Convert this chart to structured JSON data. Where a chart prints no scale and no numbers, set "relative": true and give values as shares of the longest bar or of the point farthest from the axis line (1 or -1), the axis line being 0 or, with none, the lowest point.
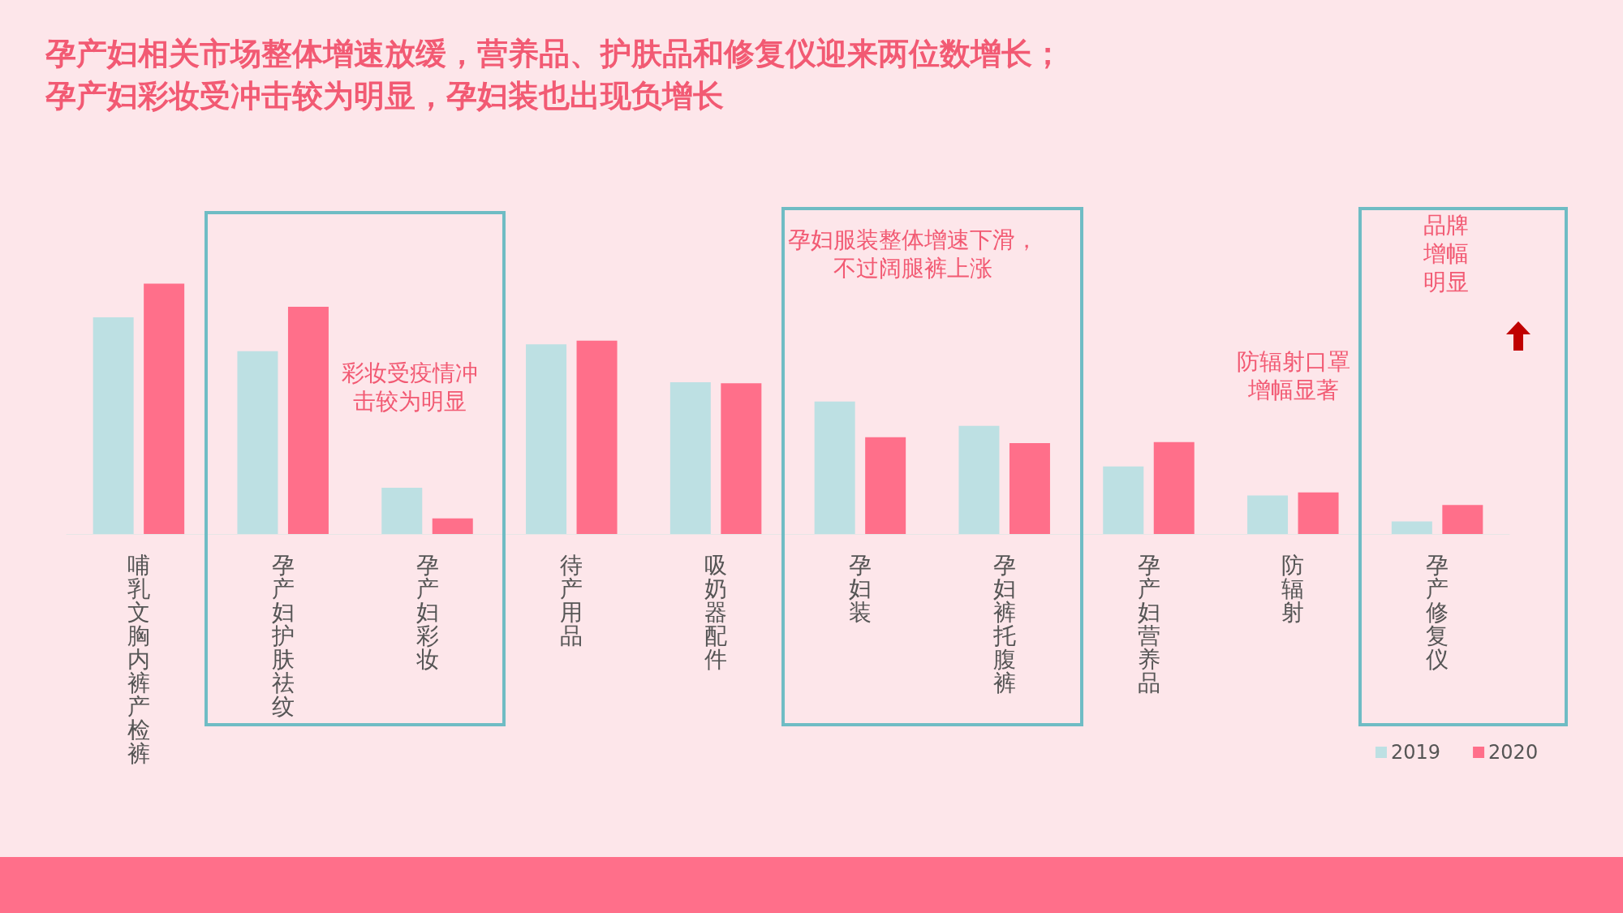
{
  "chart_data": {
    "type": "bar",
    "relative": true,
    "title": "孕产妇相关市场整体增速放缓，营养品、护肤品和修复仪迎来两位数增长；孕产妇彩妆受冲击较为明显，孕妇装也出现负增长",
    "categories": [
      "哺乳文胸内裤产检裤",
      "孕产妇护肤祛纹",
      "孕产妇彩妆",
      "待产用品",
      "吸奶器配件",
      "孕妇装",
      "孕妇裤托腹裤",
      "孕产妇营养品",
      "防辐射",
      "孕产修复仪"
    ],
    "series": [
      {
        "name": "2019",
        "color": "#bde0e3",
        "values": [
          0.865,
          0.73,
          0.185,
          0.757,
          0.606,
          0.529,
          0.432,
          0.27,
          0.154,
          0.05
        ]
      },
      {
        "name": "2020",
        "color": "#ff6f8a",
        "values": [
          1,
          0.907,
          0.062,
          0.772,
          0.602,
          0.386,
          0.363,
          0.367,
          0.166,
          0.116
        ]
      }
    ],
    "annotations": [
      "彩妆受疫情冲击较为明显",
      "孕妇服装整体增速下滑，不过阔腿裤上涨",
      "防辐射口罩增幅显著",
      "品牌增幅明显"
    ],
    "legend": "bottom right"
  }
}
